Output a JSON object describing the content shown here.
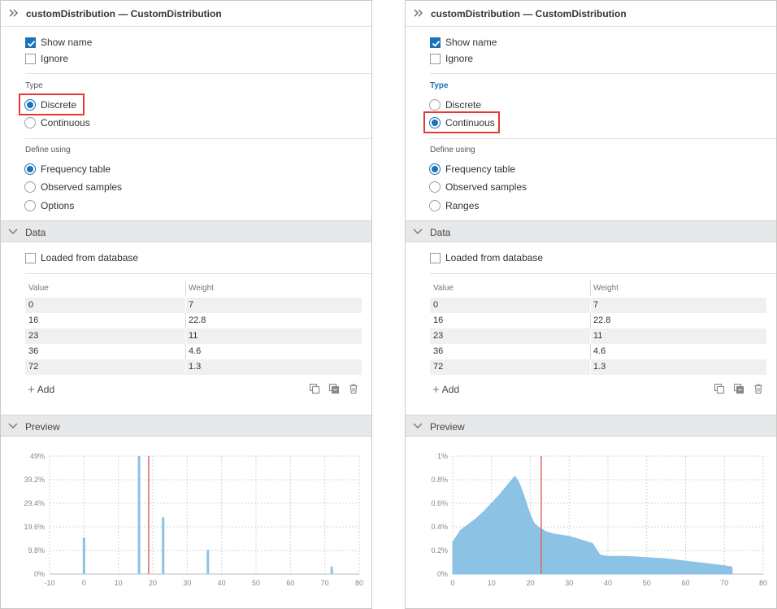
{
  "panels": [
    {
      "title": "customDistribution — CustomDistribution",
      "show_name_label": "Show name",
      "show_name_checked": true,
      "ignore_label": "Ignore",
      "ignore_checked": false,
      "type_label": "Type",
      "type_active": false,
      "type_options": [
        "Discrete",
        "Continuous"
      ],
      "type_selected": 0,
      "define_label": "Define using",
      "define_options": [
        "Frequency table",
        "Observed samples",
        "Options"
      ],
      "define_selected": 0,
      "data_section": "Data",
      "loaded_label": "Loaded from database",
      "table": {
        "headers": [
          "Value",
          "Weight"
        ],
        "rows": [
          [
            "0",
            "7"
          ],
          [
            "16",
            "22.8"
          ],
          [
            "23",
            "11"
          ],
          [
            "36",
            "4.6"
          ],
          [
            "72",
            "1.3"
          ]
        ]
      },
      "add_label": "Add",
      "preview_section": "Preview",
      "icons": [
        "collapse-icon",
        "copy-icon",
        "paste-icon",
        "delete-icon",
        "chevron-down-icon"
      ],
      "chart_data": {
        "type": "bar",
        "x_ticks": [
          "-10",
          "0",
          "10",
          "20",
          "30",
          "40",
          "50",
          "60",
          "70",
          "80"
        ],
        "y_ticks": [
          "0%",
          "9.8%",
          "19.6%",
          "29.4%",
          "39.2%",
          "49%"
        ],
        "xlim": [
          -10,
          80
        ],
        "ylim": [
          0,
          49
        ],
        "x": [
          0,
          16,
          23,
          36,
          72
        ],
        "values": [
          15.2,
          49.0,
          23.6,
          10.0,
          3.1
        ],
        "mean_line": 18.8,
        "bar_color": "#8cc2e3",
        "mean_color": "#e06666"
      }
    },
    {
      "title": "customDistribution — CustomDistribution",
      "show_name_label": "Show name",
      "show_name_checked": true,
      "ignore_label": "Ignore",
      "ignore_checked": false,
      "type_label": "Type",
      "type_active": true,
      "type_options": [
        "Discrete",
        "Continuous"
      ],
      "type_selected": 1,
      "define_label": "Define using",
      "define_options": [
        "Frequency table",
        "Observed samples",
        "Ranges"
      ],
      "define_selected": 0,
      "data_section": "Data",
      "loaded_label": "Loaded from database",
      "table": {
        "headers": [
          "Value",
          "Weight"
        ],
        "rows": [
          [
            "0",
            "7"
          ],
          [
            "16",
            "22.8"
          ],
          [
            "23",
            "11"
          ],
          [
            "36",
            "4.6"
          ],
          [
            "72",
            "1.3"
          ]
        ]
      },
      "add_label": "Add",
      "preview_section": "Preview",
      "icons": [
        "collapse-icon",
        "copy-icon",
        "paste-icon",
        "delete-icon",
        "chevron-down-icon"
      ],
      "chart_data": {
        "type": "area",
        "x_ticks": [
          "0",
          "10",
          "20",
          "30",
          "40",
          "50",
          "60",
          "70",
          "80"
        ],
        "y_ticks": [
          "0%",
          "0.2%",
          "0.4%",
          "0.6%",
          "0.8%",
          "1%"
        ],
        "xlim": [
          0,
          80
        ],
        "ylim": [
          0,
          1
        ],
        "x": [
          0,
          2,
          4,
          6,
          8,
          10,
          12,
          14,
          15,
          16,
          17,
          18,
          19,
          20,
          21,
          22,
          23,
          24,
          26,
          28,
          30,
          32,
          34,
          36,
          38,
          40,
          45,
          50,
          55,
          60,
          65,
          70,
          72
        ],
        "values": [
          0.27,
          0.37,
          0.42,
          0.47,
          0.53,
          0.6,
          0.67,
          0.75,
          0.79,
          0.83,
          0.78,
          0.7,
          0.6,
          0.5,
          0.43,
          0.4,
          0.38,
          0.36,
          0.34,
          0.33,
          0.32,
          0.3,
          0.28,
          0.26,
          0.16,
          0.15,
          0.15,
          0.14,
          0.13,
          0.11,
          0.09,
          0.07,
          0.06
        ],
        "mean_line": 22.8,
        "bar_color": "#8cc2e3",
        "mean_color": "#e06666"
      }
    }
  ]
}
